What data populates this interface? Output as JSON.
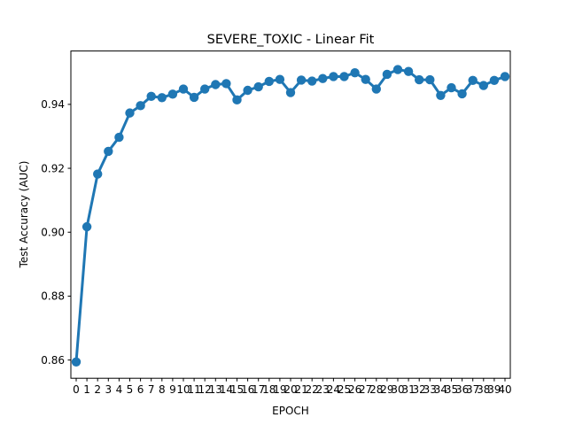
{
  "chart_data": {
    "type": "line",
    "title": "SEVERE_TOXIC - Linear Fit",
    "xlabel": "EPOCH",
    "ylabel": "Test Accuracy (AUC)",
    "x": [
      0,
      1,
      2,
      3,
      4,
      5,
      6,
      7,
      8,
      9,
      10,
      11,
      12,
      13,
      14,
      15,
      16,
      17,
      18,
      19,
      20,
      21,
      22,
      23,
      24,
      25,
      26,
      27,
      28,
      29,
      30,
      31,
      32,
      33,
      34,
      35,
      36,
      37,
      38,
      39,
      40
    ],
    "x_tick_labels": [
      "0",
      "1",
      "2",
      "3",
      "4",
      "5",
      "6",
      "7",
      "8",
      "9",
      "10",
      "11",
      "12",
      "13",
      "14",
      "15",
      "16",
      "17",
      "18",
      "19",
      "20",
      "21",
      "22",
      "23",
      "24",
      "25",
      "26",
      "27",
      "28",
      "29",
      "30",
      "31",
      "32",
      "33",
      "34",
      "35",
      "36",
      "37",
      "38",
      "39",
      "40"
    ],
    "series": [
      {
        "values": [
          0.8594,
          0.9017,
          0.9182,
          0.9253,
          0.9297,
          0.9373,
          0.9396,
          0.9425,
          0.9421,
          0.9432,
          0.9448,
          0.9422,
          0.9448,
          0.9462,
          0.9465,
          0.9414,
          0.9444,
          0.9455,
          0.9472,
          0.9478,
          0.9437,
          0.9476,
          0.9473,
          0.9481,
          0.9487,
          0.9487,
          0.9499,
          0.9478,
          0.9448,
          0.9494,
          0.9509,
          0.9503,
          0.9477,
          0.9477,
          0.9428,
          0.9452,
          0.9433,
          0.9475,
          0.9459,
          0.9475,
          0.9487
        ]
      }
    ],
    "ylim": [
      0.8543,
      0.9567
    ],
    "y_ticks": [
      0.86,
      0.88,
      0.9,
      0.92,
      0.94
    ],
    "y_tick_labels": [
      "0.86",
      "0.88",
      "0.90",
      "0.92",
      "0.94"
    ],
    "grid": false,
    "line_color": "#1f77b4"
  }
}
